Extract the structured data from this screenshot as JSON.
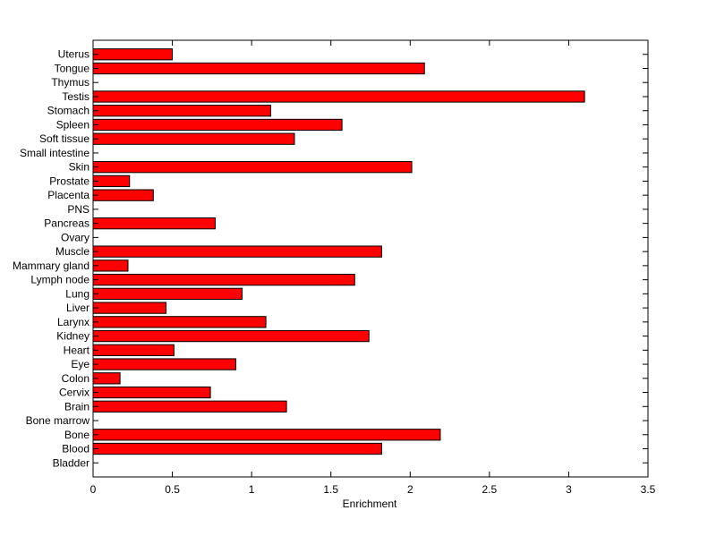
{
  "chart_data": {
    "type": "bar",
    "orientation": "horizontal",
    "xlabel": "Enrichment",
    "ylabel": "",
    "xlim": [
      0,
      3.5
    ],
    "xticks": [
      "0",
      "0.5",
      "1",
      "1.5",
      "2",
      "2.5",
      "3",
      "3.5"
    ],
    "bar_color": "#ff0000",
    "bar_edge_color": "#000000",
    "grid": false,
    "categories": [
      "Uterus",
      "Tongue",
      "Thymus",
      "Testis",
      "Stomach",
      "Spleen",
      "Soft tissue",
      "Small intestine",
      "Skin",
      "Prostate",
      "Placenta",
      "PNS",
      "Pancreas",
      "Ovary",
      "Muscle",
      "Mammary gland",
      "Lymph node",
      "Lung",
      "Liver",
      "Larynx",
      "Kidney",
      "Heart",
      "Eye",
      "Colon",
      "Cervix",
      "Brain",
      "Bone marrow",
      "Bone",
      "Blood",
      "Bladder"
    ],
    "values": [
      0.5,
      2.09,
      0,
      3.1,
      1.12,
      1.57,
      1.27,
      0,
      2.01,
      0.23,
      0.38,
      0,
      0.77,
      0,
      1.82,
      0.22,
      1.65,
      0.94,
      0.46,
      1.09,
      1.74,
      0.51,
      0.9,
      0.17,
      0.74,
      1.22,
      0,
      2.19,
      1.82,
      0
    ]
  }
}
